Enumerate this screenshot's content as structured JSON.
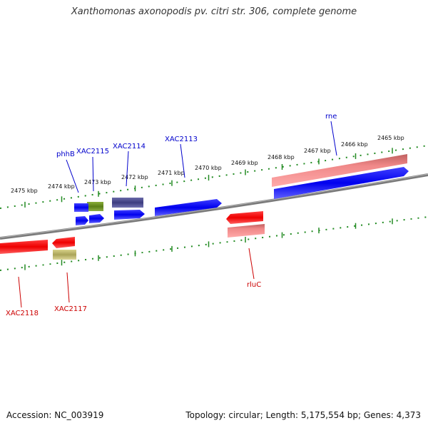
{
  "title": "Xanthomonas axonopodis pv. citri str. 306, complete genome",
  "footer": {
    "accession": "Accession: NC_003919",
    "topology": "Topology: circular; Length: 5,175,554 bp; Genes: 4,373"
  },
  "colors": {
    "backbone": "#808080",
    "tick": "#228b22",
    "label_forward": "#0000cc",
    "label_reverse": "#cc0000",
    "cds_forward": "#0000ff",
    "cds_reverse": "#ff0000",
    "gene_blue_slate": "#4b4b8c",
    "gene_olive": "#6b8e23",
    "gene_khaki": "#bdb76b",
    "gene_salmon": "#f08080"
  },
  "tick_labels": [
    "2475 kbp",
    "2474 kbp",
    "2473 kbp",
    "2472 kbp",
    "2471 kbp",
    "2470 kbp",
    "2469 kbp",
    "2468 kbp",
    "2467 kbp",
    "2466 kbp",
    "2465 kbp"
  ],
  "gene_labels_forward": [
    "phhB",
    "XAC2115",
    "XAC2114",
    "XAC2113",
    "rne"
  ],
  "gene_labels_reverse": [
    "XAC2118",
    "XAC2117",
    "rluC"
  ]
}
